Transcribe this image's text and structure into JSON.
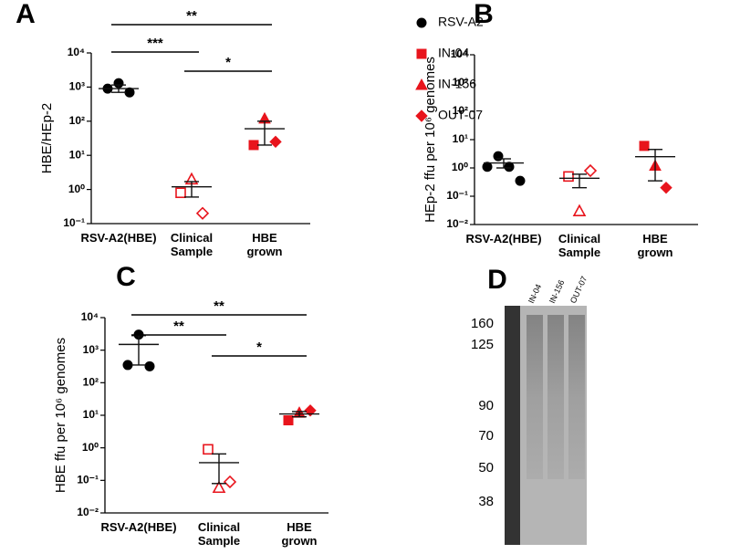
{
  "chart_data": [
    {
      "type": "scatter",
      "panel": "A",
      "ylabel": "HBE/HEp-2",
      "log_y": true,
      "legend": true,
      "open_markers_category": 1,
      "categories": [
        "RSV-A2(HBE)",
        "Clinical Sample",
        "HBE grown"
      ],
      "ylim": [
        0.1,
        10000
      ],
      "yticks": [
        {
          "value": 0.1,
          "label": "10⁻¹"
        },
        {
          "value": 1,
          "label": "10⁰"
        },
        {
          "value": 10,
          "label": "10¹"
        },
        {
          "value": 100,
          "label": "10²"
        },
        {
          "value": 1000,
          "label": "10³"
        },
        {
          "value": 10000,
          "label": "10⁴"
        }
      ],
      "series": [
        {
          "name": "RSV-A2",
          "color": "#000000",
          "marker": "circle",
          "x": [
            0,
            0,
            0
          ],
          "values": [
            900,
            1300,
            700
          ]
        },
        {
          "name": "IN-04",
          "color": "#e8141c",
          "marker": "square",
          "x": [
            1,
            2
          ],
          "values": [
            0.8,
            20
          ]
        },
        {
          "name": "IN-156",
          "color": "#e8141c",
          "marker": "triangle",
          "x": [
            1,
            2
          ],
          "values": [
            2,
            120
          ]
        },
        {
          "name": "OUT-07",
          "color": "#e8141c",
          "marker": "diamond",
          "x": [
            1,
            2
          ],
          "values": [
            0.2,
            25
          ]
        }
      ],
      "mean": [
        900,
        1.2,
        60
      ],
      "upper": [
        1150,
        1.7,
        100
      ],
      "lower": [
        700,
        0.6,
        20
      ],
      "annotations": [
        {
          "from": 0,
          "to": 2,
          "label": "**"
        },
        {
          "from": 0,
          "to": 1,
          "label": "***"
        },
        {
          "from": 1,
          "to": 2,
          "label": "*"
        }
      ]
    },
    {
      "type": "scatter",
      "panel": "B",
      "ylabel": "HEp-2 ffu per 10⁶ genomes",
      "log_y": true,
      "legend": false,
      "open_markers_category": 1,
      "categories": [
        "RSV-A2(HBE)",
        "Clinical Sample",
        "HBE grown"
      ],
      "ylim": [
        0.01,
        10000
      ],
      "yticks": [
        {
          "value": 0.01,
          "label": "10⁻²"
        },
        {
          "value": 0.1,
          "label": "10⁻¹"
        },
        {
          "value": 1,
          "label": "10⁰"
        },
        {
          "value": 10,
          "label": "10¹"
        },
        {
          "value": 100,
          "label": "10²"
        },
        {
          "value": 1000,
          "label": "10³"
        },
        {
          "value": 10000,
          "label": "10⁴"
        }
      ],
      "series": [
        {
          "color": "#000000",
          "marker": "circle",
          "x": [
            0,
            0,
            0,
            0
          ],
          "values": [
            1.1,
            2.6,
            1.1,
            0.35
          ]
        },
        {
          "color": "#e8141c",
          "marker": "square",
          "x": [
            1,
            2
          ],
          "values": [
            0.5,
            6
          ]
        },
        {
          "color": "#e8141c",
          "marker": "triangle",
          "x": [
            1,
            2
          ],
          "values": [
            0.03,
            1.2
          ]
        },
        {
          "color": "#e8141c",
          "marker": "diamond",
          "x": [
            1,
            2
          ],
          "values": [
            0.8,
            0.2
          ]
        }
      ],
      "mean": [
        1.5,
        0.43,
        2.5
      ],
      "upper": [
        2.1,
        0.6,
        4.5
      ],
      "lower": [
        1.0,
        0.2,
        0.35
      ],
      "annotations": []
    },
    {
      "type": "scatter",
      "panel": "C",
      "ylabel": "HBE ffu per 10⁶ genomes",
      "log_y": true,
      "legend": false,
      "open_markers_category": 1,
      "categories": [
        "RSV-A2(HBE)",
        "Clinical Sample",
        "HBE grown"
      ],
      "ylim": [
        0.01,
        10000
      ],
      "yticks": [
        {
          "value": 0.01,
          "label": "10⁻²"
        },
        {
          "value": 0.1,
          "label": "10⁻¹"
        },
        {
          "value": 1,
          "label": "10⁰"
        },
        {
          "value": 10,
          "label": "10¹"
        },
        {
          "value": 100,
          "label": "10²"
        },
        {
          "value": 1000,
          "label": "10³"
        },
        {
          "value": 10000,
          "label": "10⁴"
        }
      ],
      "series": [
        {
          "color": "#000000",
          "marker": "circle",
          "x": [
            0,
            0,
            0
          ],
          "values": [
            350,
            3000,
            320
          ]
        },
        {
          "color": "#e8141c",
          "marker": "square",
          "x": [
            1,
            2
          ],
          "values": [
            0.9,
            7
          ]
        },
        {
          "color": "#e8141c",
          "marker": "triangle",
          "x": [
            1,
            2
          ],
          "values": [
            0.06,
            12
          ]
        },
        {
          "color": "#e8141c",
          "marker": "diamond",
          "x": [
            1,
            2
          ],
          "values": [
            0.09,
            14
          ]
        }
      ],
      "mean": [
        1500,
        0.35,
        11
      ],
      "upper": [
        2800,
        0.65,
        13
      ],
      "lower": [
        350,
        0.08,
        9
      ],
      "annotations": [
        {
          "from": 0,
          "to": 2,
          "label": "**"
        },
        {
          "from": 0,
          "to": 1,
          "label": "**"
        },
        {
          "from": 1,
          "to": 2,
          "label": "*"
        }
      ]
    }
  ],
  "blot": {
    "panel": "D",
    "lanes": [
      "IN-04",
      "IN-156",
      "OUT-07"
    ],
    "markers": [
      160,
      125,
      90,
      70,
      50,
      38
    ]
  }
}
